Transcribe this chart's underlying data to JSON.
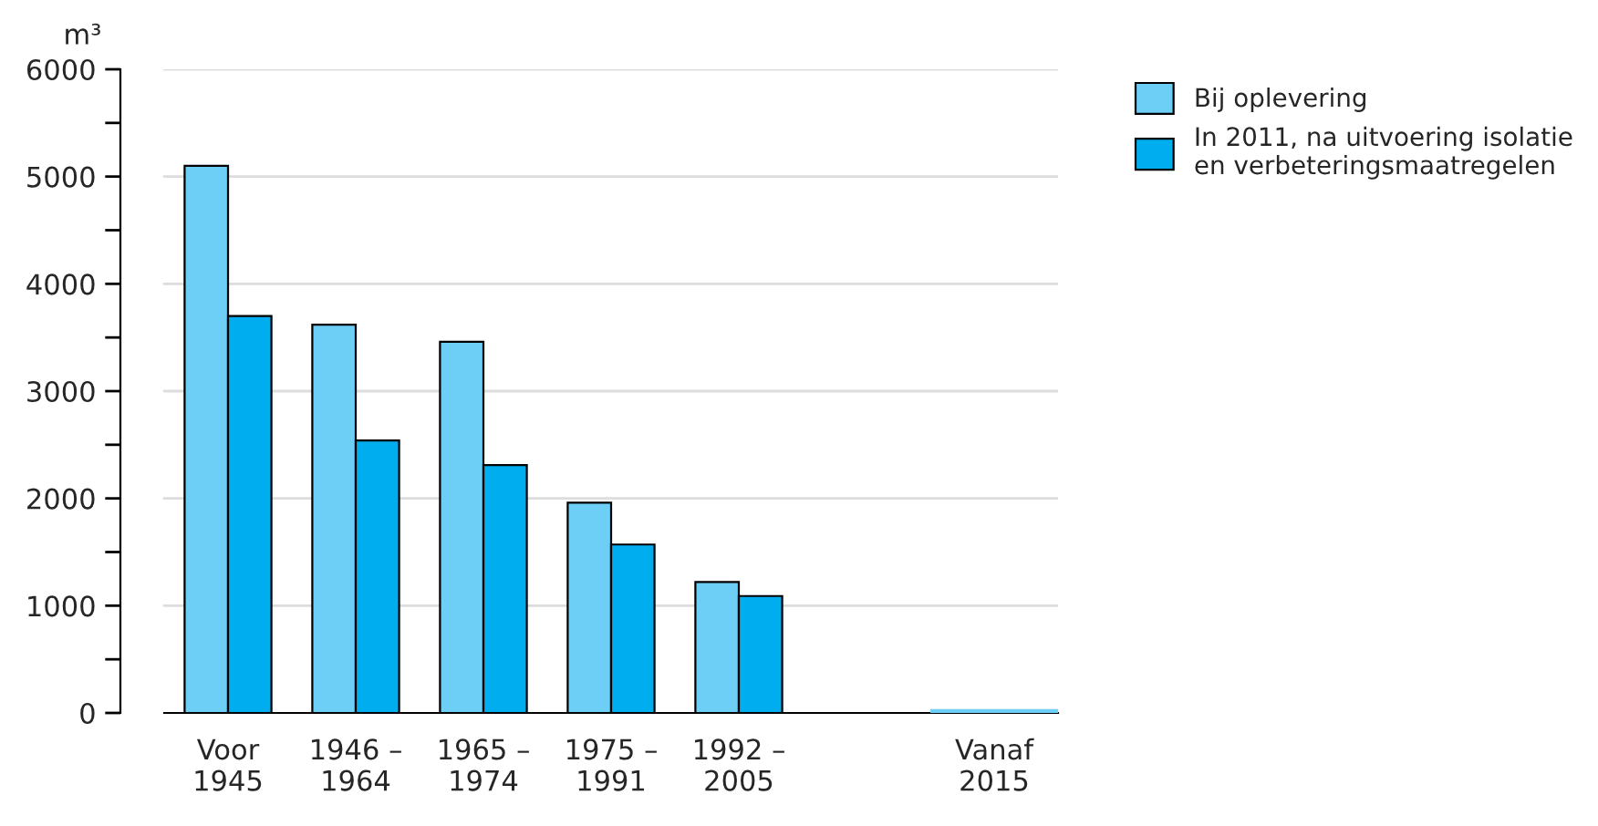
{
  "chart_data": {
    "type": "bar",
    "ylabel": "m³",
    "categories": [
      "Voor\n1945",
      "1946 –\n1964",
      "1965 –\n1974",
      "1975 –\n1991",
      "1992 –\n2005",
      null,
      "Vanaf\n2015"
    ],
    "series": [
      {
        "name": "Bij oplevering",
        "color": "#6dcff6",
        "values": [
          5100,
          3620,
          3460,
          1960,
          1220,
          null,
          0
        ]
      },
      {
        "name": "In 2011, na uitvoering isolatie\nen verbeteringsmaatregelen",
        "color": "#00aeef",
        "values": [
          3700,
          2540,
          2310,
          1570,
          1090,
          null,
          null
        ]
      }
    ],
    "ylim": [
      0,
      6000
    ],
    "yticks": [
      0,
      1000,
      2000,
      3000,
      4000,
      5000,
      6000
    ],
    "grid": "y",
    "legend": "top right"
  }
}
